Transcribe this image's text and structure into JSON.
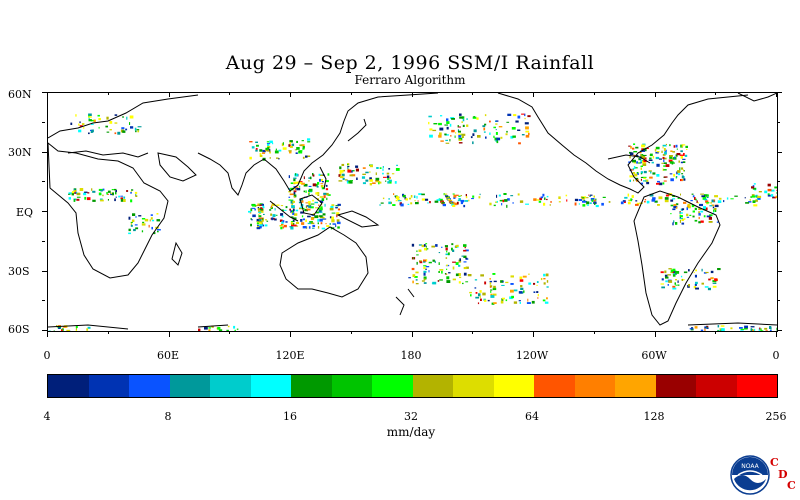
{
  "title": "Aug 29 – Sep 2, 1996 SSM/I Rainfall",
  "subtitle": "Ferraro Algorithm",
  "lat_labels": [
    "60N",
    "30N",
    "EQ",
    "30S",
    "60S"
  ],
  "lon_labels": [
    "0",
    "60E",
    "120E",
    "180",
    "120W",
    "60W",
    "0"
  ],
  "colorbar": {
    "colors": [
      "#001f7a",
      "#0033b3",
      "#0a53ff",
      "#00999b",
      "#00cccc",
      "#00ffff",
      "#009900",
      "#00c400",
      "#00ff00",
      "#b3b300",
      "#dddd00",
      "#ffff00",
      "#ff5500",
      "#ff7f00",
      "#ffa500",
      "#990000",
      "#cc0000",
      "#ff0000"
    ],
    "tick_labels": [
      "4",
      "8",
      "16",
      "32",
      "64",
      "128",
      "256"
    ],
    "units": "mm/day"
  },
  "logo": {
    "text": "NOAA",
    "cdc": [
      "C",
      "D",
      "C"
    ]
  }
}
